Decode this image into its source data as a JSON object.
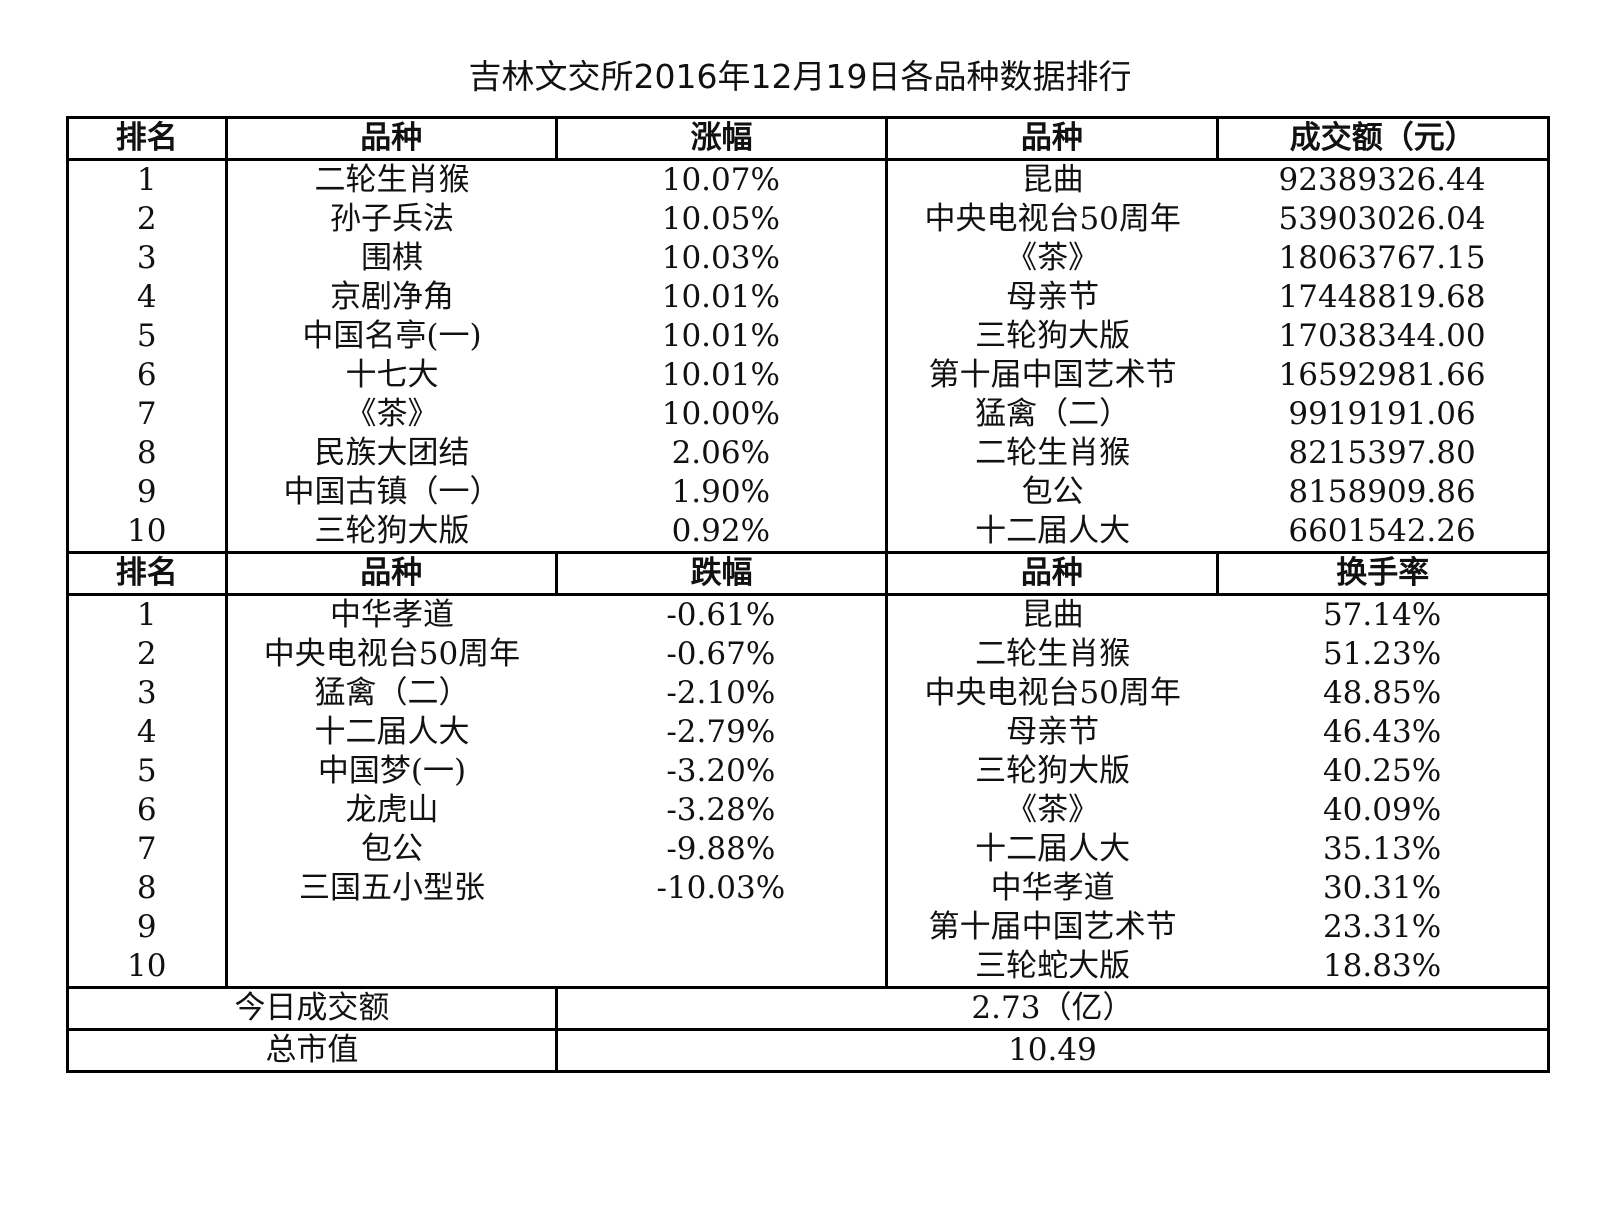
{
  "title": "吉林文交所2016年12月19日各品种数据排行",
  "section1": {
    "headers": [
      "排名",
      "品种",
      "涨幅",
      "品种",
      "成交额（元）"
    ],
    "rows": [
      [
        "1",
        "二轮生肖猴",
        "10.07%",
        "昆曲",
        "92389326.44"
      ],
      [
        "2",
        "孙子兵法",
        "10.05%",
        "中央电视台50周年",
        "53903026.04"
      ],
      [
        "3",
        "围棋",
        "10.03%",
        "《茶》",
        "18063767.15"
      ],
      [
        "4",
        "京剧净角",
        "10.01%",
        "母亲节",
        "17448819.68"
      ],
      [
        "5",
        "中国名亭(一)",
        "10.01%",
        "三轮狗大版",
        "17038344.00"
      ],
      [
        "6",
        "十七大",
        "10.01%",
        "第十届中国艺术节",
        "16592981.66"
      ],
      [
        "7",
        "《茶》",
        "10.00%",
        "猛禽（二）",
        "9919191.06"
      ],
      [
        "8",
        "民族大团结",
        "2.06%",
        "二轮生肖猴",
        "8215397.80"
      ],
      [
        "9",
        "中国古镇（一）",
        "1.90%",
        "包公",
        "8158909.86"
      ],
      [
        "10",
        "三轮狗大版",
        "0.92%",
        "十二届人大",
        "6601542.26"
      ]
    ]
  },
  "section2": {
    "headers": [
      "排名",
      "品种",
      "跌幅",
      "品种",
      "换手率"
    ],
    "rows": [
      [
        "1",
        "中华孝道",
        "-0.61%",
        "昆曲",
        "57.14%"
      ],
      [
        "2",
        "中央电视台50周年",
        "-0.67%",
        "二轮生肖猴",
        "51.23%"
      ],
      [
        "3",
        "猛禽（二）",
        "-2.10%",
        "中央电视台50周年",
        "48.85%"
      ],
      [
        "4",
        "十二届人大",
        "-2.79%",
        "母亲节",
        "46.43%"
      ],
      [
        "5",
        "中国梦(一)",
        "-3.20%",
        "三轮狗大版",
        "40.25%"
      ],
      [
        "6",
        "龙虎山",
        "-3.28%",
        "《茶》",
        "40.09%"
      ],
      [
        "7",
        "包公",
        "-9.88%",
        "十二届人大",
        "35.13%"
      ],
      [
        "8",
        "三国五小型张",
        "-10.03%",
        "中华孝道",
        "30.31%"
      ],
      [
        "9",
        "",
        "",
        "第十届中国艺术节",
        "23.31%"
      ],
      [
        "10",
        "",
        "",
        "三轮蛇大版",
        "18.83%"
      ]
    ]
  },
  "summary": [
    {
      "label": "今日成交额",
      "value": "2.73（亿）"
    },
    {
      "label": "总市值",
      "value": "10.49"
    }
  ]
}
